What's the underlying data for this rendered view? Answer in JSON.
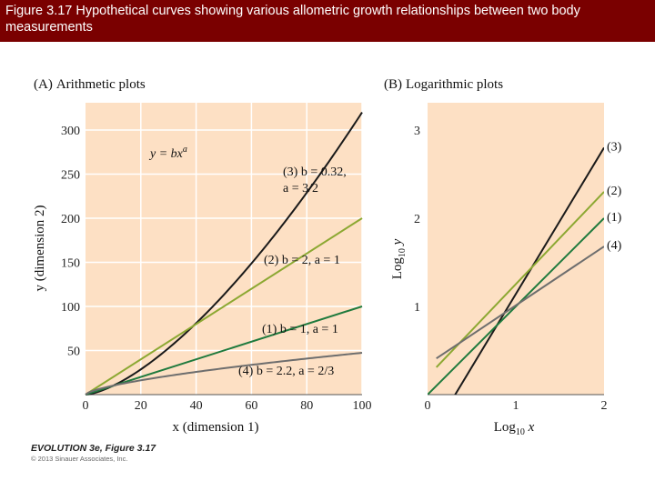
{
  "header": {
    "title": "Figure 3.17 Hypothetical curves showing various allometric growth relationships between two body measurements"
  },
  "credit": {
    "title": "EVOLUTION 3e, Figure 3.17",
    "copyright": "© 2013 Sinauer Associates, Inc."
  },
  "colors": {
    "background_panel": "#fde0c4",
    "grid": "#ffffff",
    "curve3": "#1a1a1a",
    "curve2": "#8ca832",
    "curve1": "#1f7a3d",
    "curve4": "#6e6e6e"
  },
  "chart_data": [
    {
      "type": "line",
      "panel": "(A)",
      "title": "Arithmetic plots",
      "equation": "y = bx",
      "equation_exponent": "a",
      "xlabel": "x (dimension 1)",
      "ylabel": "y (dimension 2)",
      "xlim": [
        0,
        105
      ],
      "ylim": [
        0,
        330
      ],
      "xticks": [
        0,
        20,
        40,
        60,
        80,
        100
      ],
      "yticks": [
        50,
        100,
        150,
        200,
        250,
        300
      ],
      "grid": true,
      "series": [
        {
          "name": "(3) b = 0.32, a = 3/2",
          "label_line1": "(3) b = 0.32,",
          "label_line2": "a = 3/2",
          "b": 0.32,
          "a": 1.5,
          "x": [
            0,
            10,
            20,
            30,
            40,
            50,
            60,
            70,
            80,
            90,
            100
          ],
          "y": [
            0,
            10.1,
            28.6,
            52.6,
            81,
            113.1,
            148.7,
            187.4,
            229,
            273.2,
            320
          ],
          "color": "#1a1a1a"
        },
        {
          "name": "(2) b = 2, a = 1",
          "b": 2,
          "a": 1,
          "x": [
            0,
            100
          ],
          "y": [
            0,
            200
          ],
          "color": "#8ca832"
        },
        {
          "name": "(1) b = 1, a = 1",
          "b": 1,
          "a": 1,
          "x": [
            0,
            100
          ],
          "y": [
            0,
            100
          ],
          "color": "#1f7a3d"
        },
        {
          "name": "(4) b = 2.2, a = 2/3",
          "b": 2.2,
          "a": 0.6667,
          "x": [
            0,
            10,
            20,
            30,
            40,
            50,
            60,
            70,
            80,
            90,
            100
          ],
          "y": [
            0,
            10.2,
            16.2,
            21.2,
            25.7,
            29.9,
            33.7,
            37.4,
            40.8,
            44.1,
            47.4
          ],
          "color": "#6e6e6e"
        }
      ]
    },
    {
      "type": "line",
      "panel": "(B)",
      "title": "Logarithmic plots",
      "xlabel": "Log10 x",
      "ylabel": "Log10 y",
      "xlim": [
        0,
        2.1
      ],
      "ylim": [
        0,
        3.1
      ],
      "xticks": [
        0,
        1,
        2
      ],
      "yticks": [
        1,
        2,
        3
      ],
      "grid": false,
      "series": [
        {
          "name": "(3)",
          "x": [
            0.12,
            2
          ],
          "y": [
            -0.32,
            2.8
          ],
          "color": "#1a1a1a"
        },
        {
          "name": "(2)",
          "x": [
            0.1,
            2
          ],
          "y": [
            0.31,
            2.3
          ],
          "color": "#8ca832"
        },
        {
          "name": "(1)",
          "x": [
            0,
            2
          ],
          "y": [
            0,
            2
          ],
          "color": "#1f7a3d"
        },
        {
          "name": "(4)",
          "x": [
            0.1,
            2
          ],
          "y": [
            0.41,
            1.68
          ],
          "color": "#6e6e6e"
        }
      ]
    }
  ]
}
